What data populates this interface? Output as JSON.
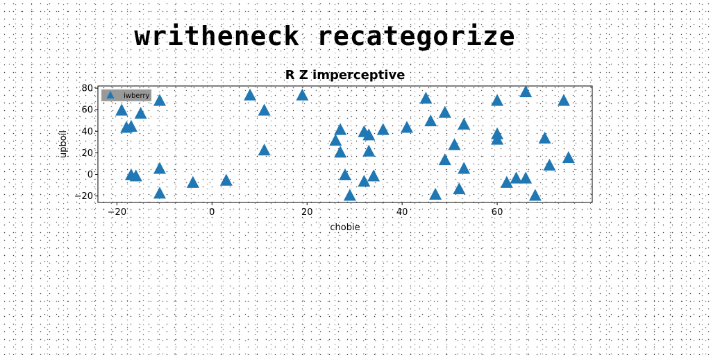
{
  "page": {
    "title": "writheneck recategorize"
  },
  "chart_data": {
    "type": "scatter",
    "title": "R Z imperceptive",
    "xlabel": "chobie",
    "ylabel": "upboil",
    "xlim": [
      -24,
      80
    ],
    "ylim": [
      -26,
      82
    ],
    "xticks": [
      -20,
      0,
      20,
      40,
      60
    ],
    "yticks": [
      -20,
      0,
      20,
      40,
      60,
      80
    ],
    "grid": false,
    "legend_position": "top-left",
    "series": [
      {
        "name": "iwberry",
        "color": "#1f77b4",
        "marker": "triangle",
        "points": [
          [
            -19,
            59
          ],
          [
            -18,
            43
          ],
          [
            -17,
            44
          ],
          [
            -15,
            56
          ],
          [
            -11,
            68
          ],
          [
            -17,
            -1
          ],
          [
            -16,
            -2
          ],
          [
            -11,
            5
          ],
          [
            -11,
            -18
          ],
          [
            -4,
            -8
          ],
          [
            3,
            -6
          ],
          [
            8,
            73
          ],
          [
            11,
            59
          ],
          [
            11,
            22
          ],
          [
            19,
            73
          ],
          [
            26,
            31
          ],
          [
            27,
            41
          ],
          [
            27,
            20
          ],
          [
            28,
            -1
          ],
          [
            29,
            -20
          ],
          [
            32,
            39
          ],
          [
            32,
            -7
          ],
          [
            33,
            36
          ],
          [
            33,
            21
          ],
          [
            34,
            -2
          ],
          [
            36,
            41
          ],
          [
            41,
            43
          ],
          [
            45,
            70
          ],
          [
            46,
            49
          ],
          [
            47,
            -19
          ],
          [
            49,
            57
          ],
          [
            49,
            13
          ],
          [
            51,
            27
          ],
          [
            52,
            -14
          ],
          [
            53,
            46
          ],
          [
            53,
            5
          ],
          [
            60,
            68
          ],
          [
            60,
            37
          ],
          [
            60,
            32
          ],
          [
            62,
            -8
          ],
          [
            64,
            -4
          ],
          [
            66,
            76
          ],
          [
            66,
            -4
          ],
          [
            68,
            -20
          ],
          [
            70,
            33
          ],
          [
            71,
            8
          ],
          [
            74,
            68
          ],
          [
            75,
            15
          ]
        ]
      }
    ]
  }
}
